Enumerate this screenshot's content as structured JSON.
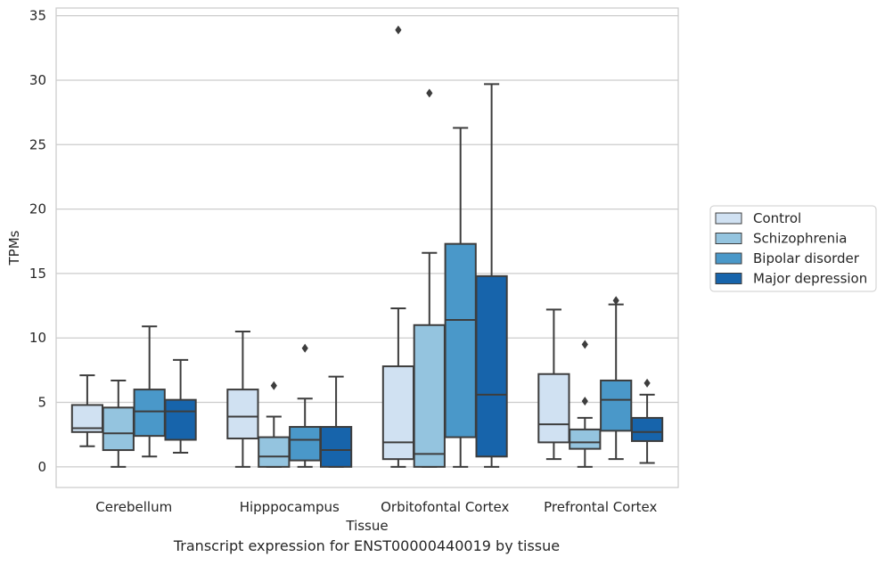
{
  "caption": "Transcript expression for ENST00000440019 by tissue",
  "chart_data": {
    "type": "box",
    "xlabel": "Tissue",
    "ylabel": "TPMs",
    "ylim": [
      -1.6,
      35.6
    ],
    "yticks": [
      0,
      5,
      10,
      15,
      20,
      25,
      30,
      35
    ],
    "grid": true,
    "legend_position": "right",
    "categories": [
      "Cerebellum",
      "Hipppocampus",
      "Orbitofontal Cortex",
      "Prefrontal Cortex"
    ],
    "series": [
      {
        "name": "Control",
        "color": "#d0e1f2",
        "boxes": [
          {
            "whisker_low": 1.6,
            "q1": 2.7,
            "median": 3.0,
            "q3": 4.8,
            "whisker_high": 7.1,
            "outliers": []
          },
          {
            "whisker_low": 0.0,
            "q1": 2.2,
            "median": 3.9,
            "q3": 6.0,
            "whisker_high": 10.5,
            "outliers": []
          },
          {
            "whisker_low": 0.0,
            "q1": 0.6,
            "median": 1.9,
            "q3": 7.8,
            "whisker_high": 12.3,
            "outliers": [
              33.9
            ]
          },
          {
            "whisker_low": 0.6,
            "q1": 1.9,
            "median": 3.3,
            "q3": 7.2,
            "whisker_high": 12.2,
            "outliers": []
          }
        ]
      },
      {
        "name": "Schizophrenia",
        "color": "#94c4df",
        "boxes": [
          {
            "whisker_low": 0.0,
            "q1": 1.3,
            "median": 2.6,
            "q3": 4.6,
            "whisker_high": 6.7,
            "outliers": []
          },
          {
            "whisker_low": 0.0,
            "q1": 0.0,
            "median": 0.8,
            "q3": 2.3,
            "whisker_high": 3.9,
            "outliers": [
              6.3
            ]
          },
          {
            "whisker_low": 0.0,
            "q1": 0.0,
            "median": 1.0,
            "q3": 11.0,
            "whisker_high": 16.6,
            "outliers": [
              29.0
            ]
          },
          {
            "whisker_low": 0.0,
            "q1": 1.4,
            "median": 1.9,
            "q3": 2.9,
            "whisker_high": 3.8,
            "outliers": [
              5.1,
              9.5
            ]
          }
        ]
      },
      {
        "name": "Bipolar disorder",
        "color": "#4a98c9",
        "boxes": [
          {
            "whisker_low": 0.8,
            "q1": 2.4,
            "median": 4.3,
            "q3": 6.0,
            "whisker_high": 10.9,
            "outliers": []
          },
          {
            "whisker_low": 0.0,
            "q1": 0.5,
            "median": 2.1,
            "q3": 3.1,
            "whisker_high": 5.3,
            "outliers": [
              9.2
            ]
          },
          {
            "whisker_low": 0.0,
            "q1": 2.3,
            "median": 11.4,
            "q3": 17.3,
            "whisker_high": 26.3,
            "outliers": []
          },
          {
            "whisker_low": 0.6,
            "q1": 2.8,
            "median": 5.2,
            "q3": 6.7,
            "whisker_high": 12.6,
            "outliers": [
              12.9
            ]
          }
        ]
      },
      {
        "name": "Major depression",
        "color": "#1764ab",
        "boxes": [
          {
            "whisker_low": 1.1,
            "q1": 2.1,
            "median": 4.3,
            "q3": 5.2,
            "whisker_high": 8.3,
            "outliers": []
          },
          {
            "whisker_low": 0.0,
            "q1": 0.0,
            "median": 1.3,
            "q3": 3.1,
            "whisker_high": 7.0,
            "outliers": []
          },
          {
            "whisker_low": 0.0,
            "q1": 0.8,
            "median": 5.6,
            "q3": 14.8,
            "whisker_high": 29.7,
            "outliers": []
          },
          {
            "whisker_low": 0.3,
            "q1": 2.0,
            "median": 2.7,
            "q3": 3.8,
            "whisker_high": 5.6,
            "outliers": [
              6.5
            ]
          }
        ]
      }
    ]
  }
}
